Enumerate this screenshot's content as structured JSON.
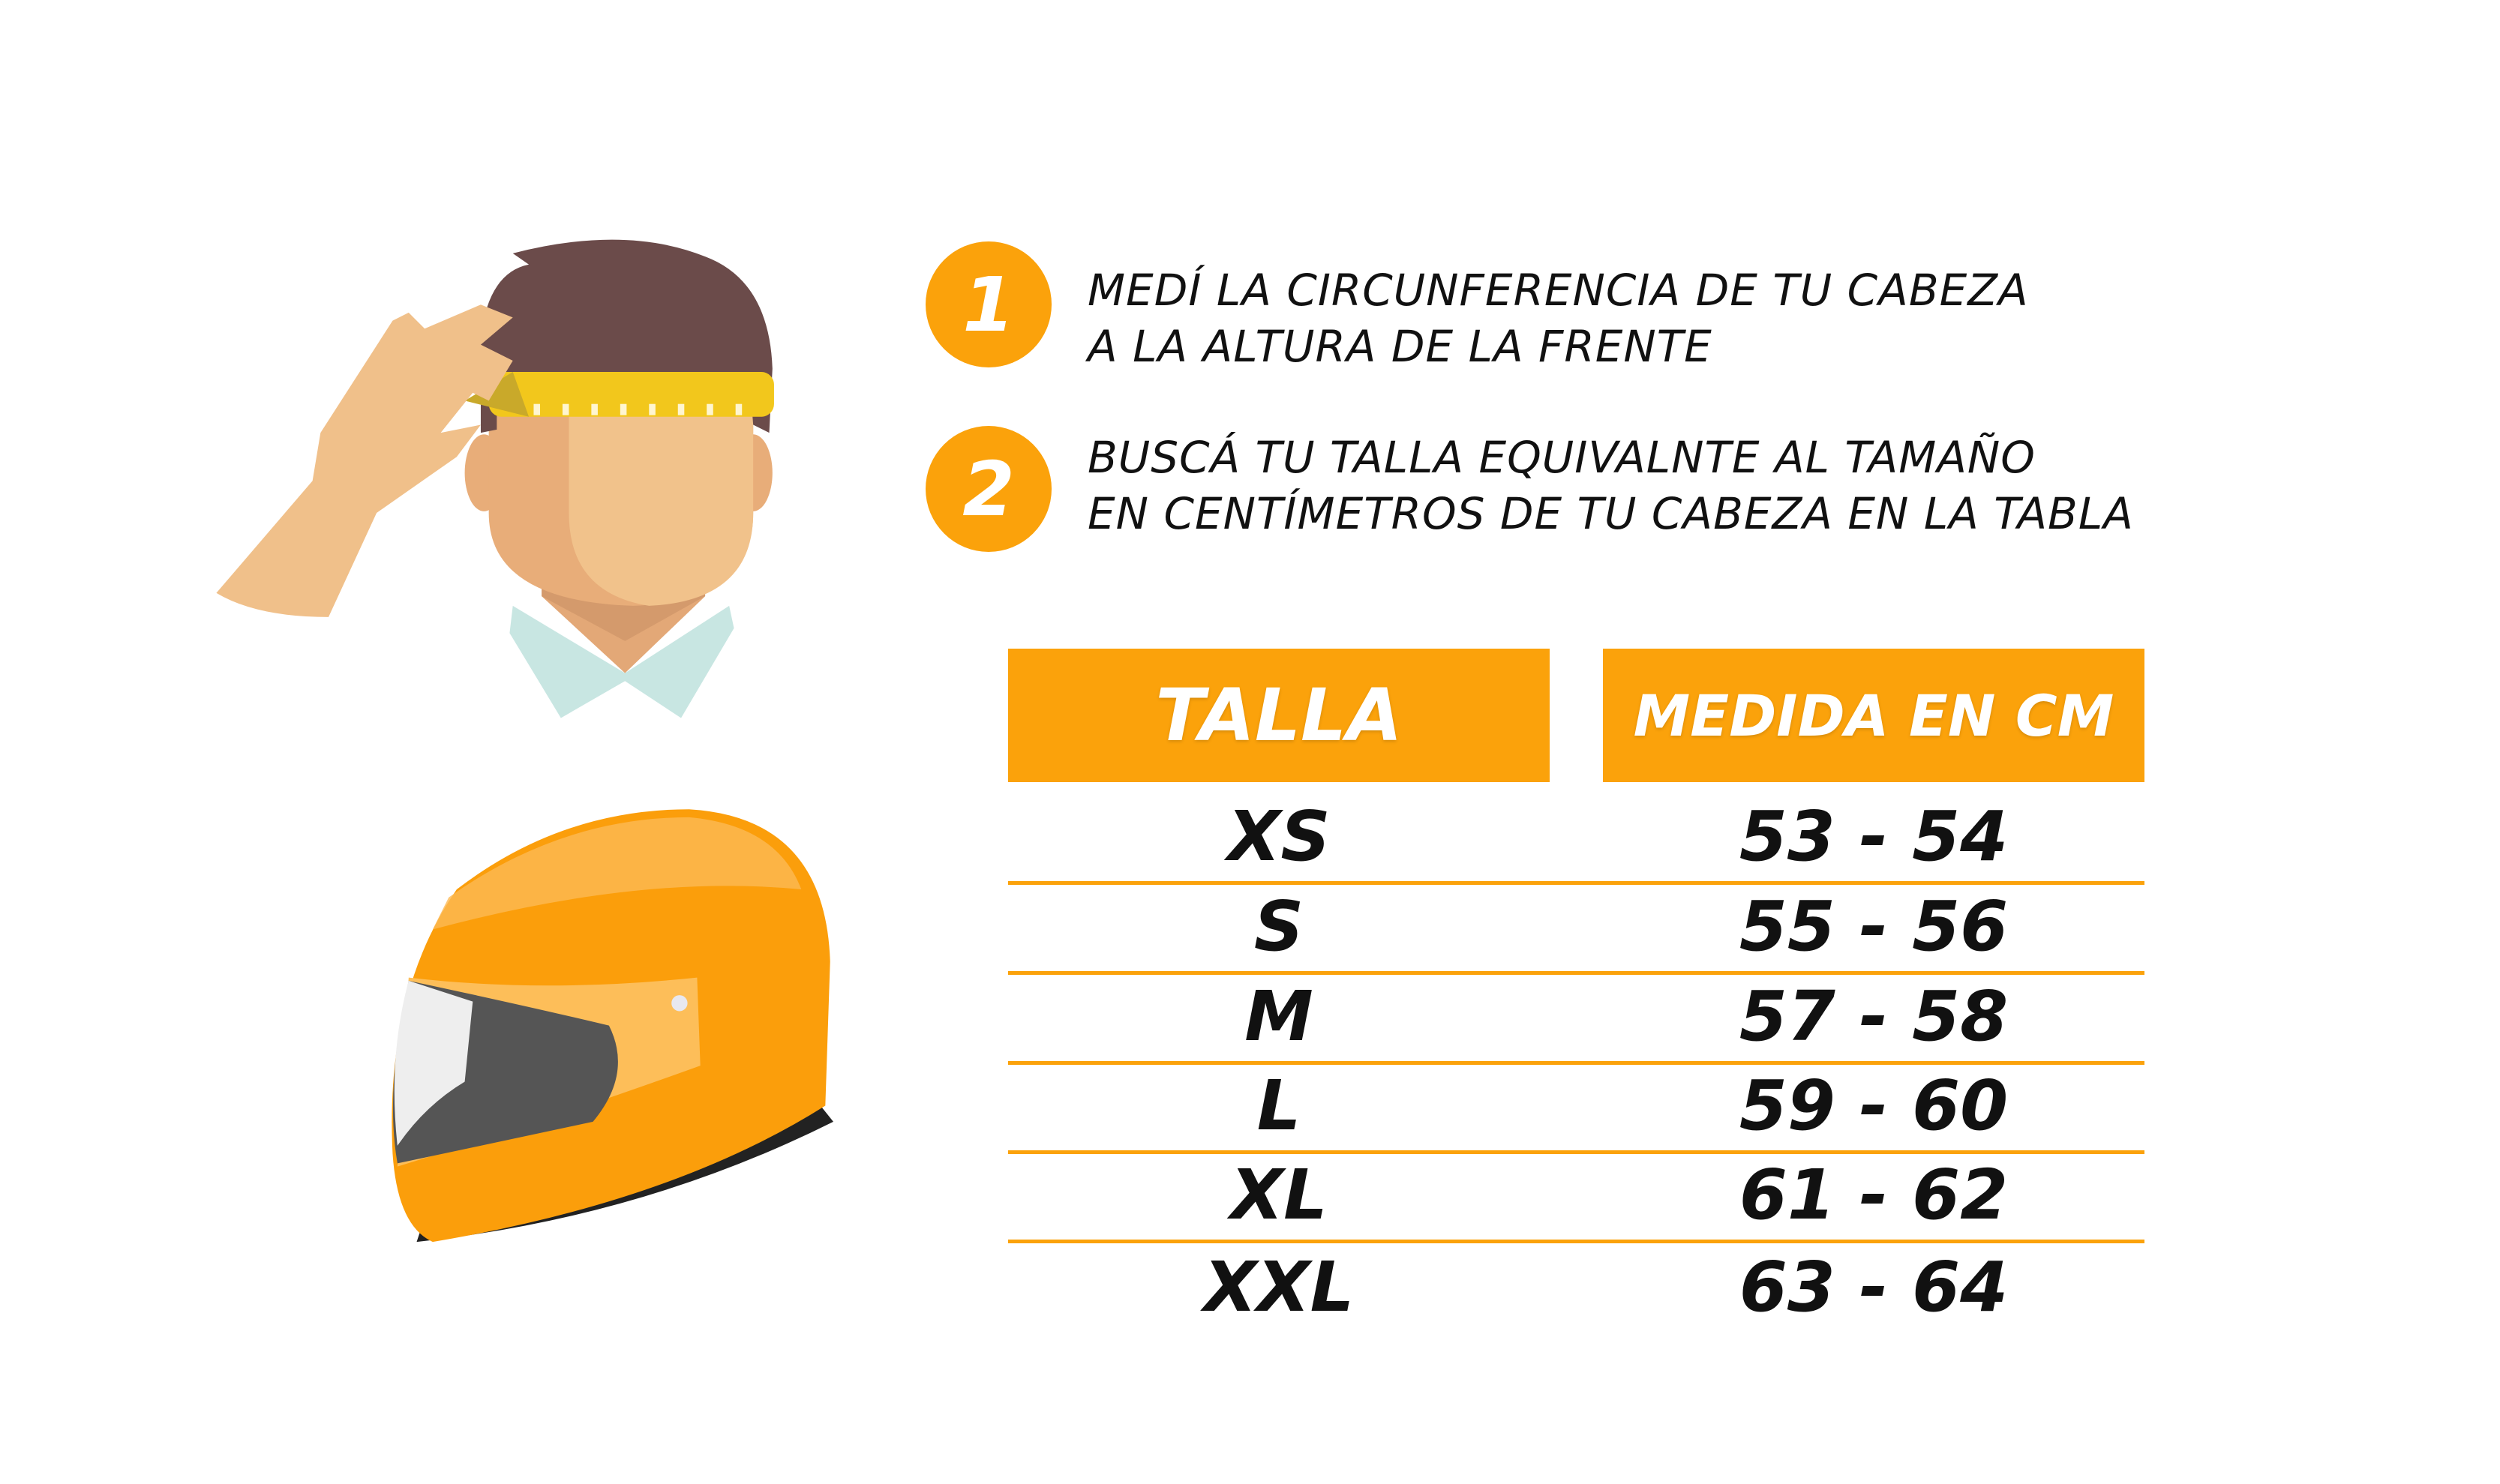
{
  "colors": {
    "accent": "#FBA20B",
    "text": "#111111"
  },
  "illustrations": {
    "head": "person-measuring-head-with-tape-icon",
    "helmet": "orange-motorcycle-helmet-icon"
  },
  "steps": [
    {
      "number": "1",
      "lines": [
        "MEDÍ LA CIRCUNFERENCIA DE TU CABEZA",
        "A LA ALTURA DE LA FRENTE"
      ]
    },
    {
      "number": "2",
      "lines": [
        "BUSCÁ TU TALLA EQUIVALNTE AL TAMAÑO",
        "EN CENTÍMETROS DE TU CABEZA EN LA TABLA"
      ]
    }
  ],
  "table": {
    "headers": [
      "TALLA",
      "MEDIDA EN CM"
    ],
    "rows": [
      [
        "XS",
        "53 - 54"
      ],
      [
        "S",
        "55 - 56"
      ],
      [
        "M",
        "57 - 58"
      ],
      [
        "L",
        "59 - 60"
      ],
      [
        "XL",
        "61 - 62"
      ],
      [
        "XXL",
        "63 - 64"
      ]
    ]
  }
}
